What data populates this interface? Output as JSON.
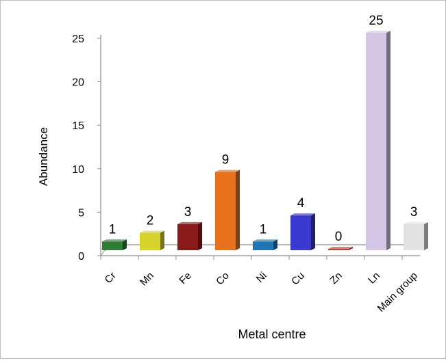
{
  "chart_data": {
    "type": "bar",
    "title": "",
    "xlabel": "Metal centre",
    "ylabel": "Abundance",
    "categories": [
      "Cr",
      "Mn",
      "Fe",
      "Co",
      "Ni",
      "Cu",
      "Zn",
      "Ln",
      "Main group"
    ],
    "values": [
      1,
      2,
      3,
      9,
      1,
      4,
      0,
      25,
      3
    ],
    "data_labels": [
      "1",
      "2",
      "3",
      "9",
      "1",
      "4",
      "0",
      "25",
      "3"
    ],
    "colors": [
      "#2e7d32",
      "#d8d22c",
      "#8b1a1a",
      "#e8731c",
      "#1e77b4",
      "#3a3ad0",
      "#c0392b",
      "#d6c6e6",
      "#e2e2e2"
    ],
    "ylim": [
      0,
      25
    ],
    "yticks": [
      "0",
      "5",
      "10",
      "15",
      "20",
      "25"
    ],
    "grid": false,
    "legend": "none"
  }
}
